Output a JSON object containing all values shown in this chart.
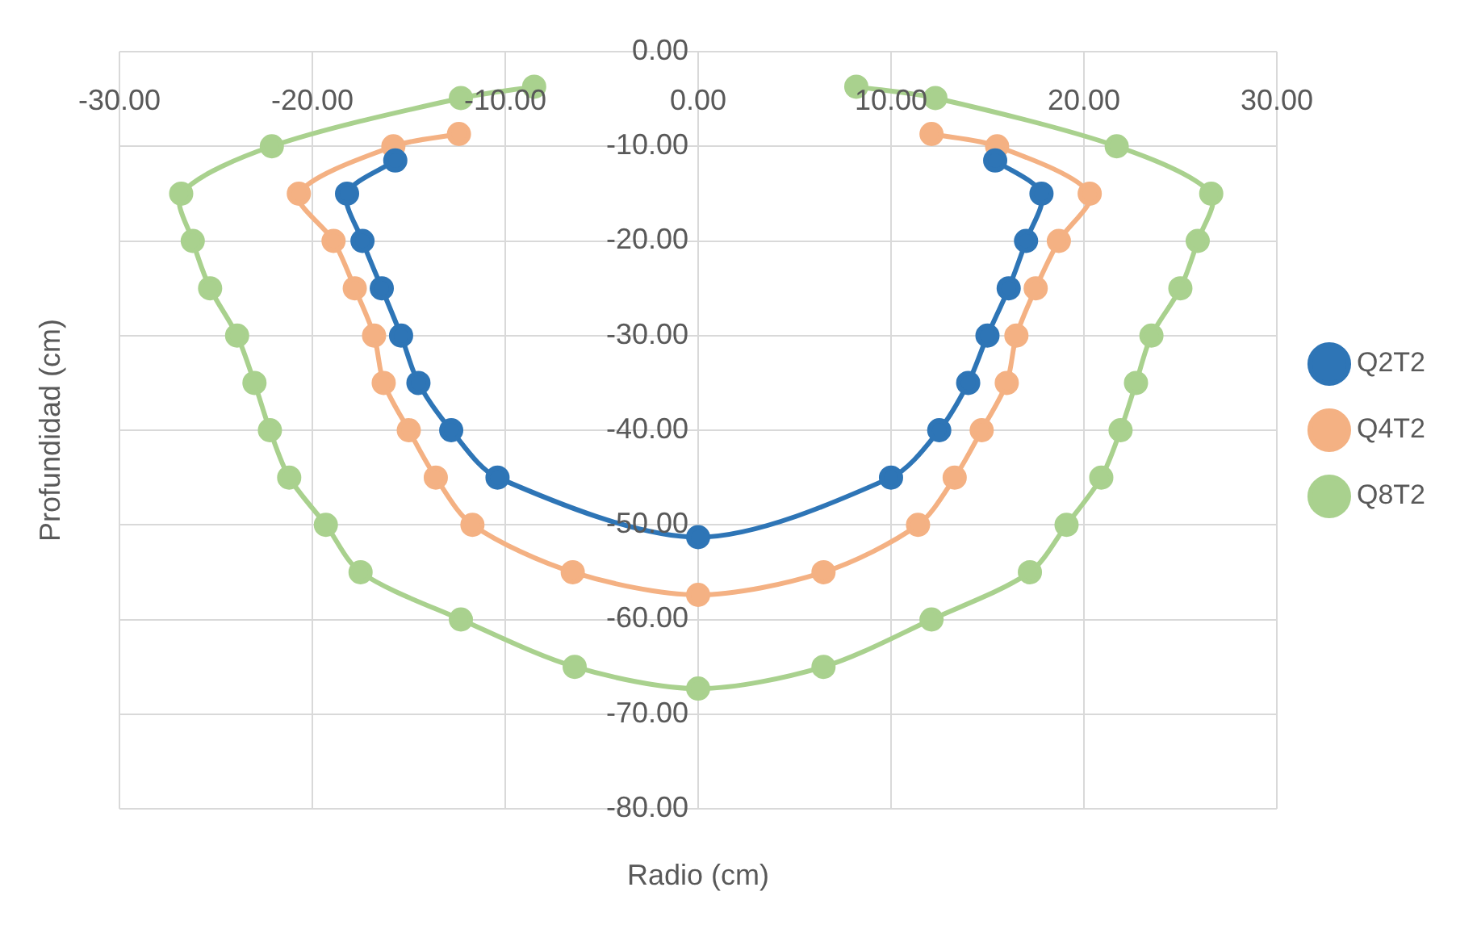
{
  "chart_data": {
    "type": "line",
    "xlabel": "Radio (cm)",
    "ylabel": "Profundidad (cm)",
    "xlim": [
      -30,
      30
    ],
    "ylim": [
      -80,
      0
    ],
    "xticks": [
      {
        "value": -30,
        "label": "-30.00"
      },
      {
        "value": -20,
        "label": "-20.00"
      },
      {
        "value": -10,
        "label": "-10.00"
      },
      {
        "value": 0,
        "label": "0.00"
      },
      {
        "value": 10,
        "label": "10.00"
      },
      {
        "value": 20,
        "label": "20.00"
      },
      {
        "value": 30,
        "label": "30.00"
      }
    ],
    "yticks": [
      {
        "value": 0,
        "label": "0.00"
      },
      {
        "value": -10,
        "label": "-10.00"
      },
      {
        "value": -20,
        "label": "-20.00"
      },
      {
        "value": -30,
        "label": "-30.00"
      },
      {
        "value": -40,
        "label": "-40.00"
      },
      {
        "value": -50,
        "label": "-50.00"
      },
      {
        "value": -60,
        "label": "-60.00"
      },
      {
        "value": -70,
        "label": "-70.00"
      },
      {
        "value": -80,
        "label": "-80.00"
      }
    ],
    "grid": true,
    "legend": "right",
    "marker": "circle",
    "line_style": "solid",
    "series": [
      {
        "name": "Q2T2",
        "color": "#2e75b6",
        "x": [
          -15.7,
          -18.2,
          -17.4,
          -16.4,
          -15.4,
          -14.5,
          -12.8,
          -10.4,
          0,
          10.0,
          12.5,
          14.0,
          15.0,
          16.1,
          17.0,
          17.8,
          15.4
        ],
        "values": [
          -11.5,
          -15,
          -20,
          -25,
          -30,
          -35,
          -40,
          -45,
          -51.3,
          -45,
          -40,
          -35,
          -30,
          -25,
          -20,
          -15,
          -11.5
        ]
      },
      {
        "name": "Q4T2",
        "color": "#f4b183",
        "x": [
          -12.4,
          -15.8,
          -20.7,
          -18.9,
          -17.8,
          -16.8,
          -16.3,
          -15.0,
          -13.6,
          -11.7,
          -6.5,
          0,
          6.5,
          11.4,
          13.3,
          14.7,
          16.0,
          16.5,
          17.5,
          18.7,
          20.3,
          15.5,
          12.1
        ],
        "values": [
          -8.7,
          -10,
          -15,
          -20,
          -25,
          -30,
          -35,
          -40,
          -45,
          -50,
          -55,
          -57.4,
          -55,
          -50,
          -45,
          -40,
          -35,
          -30,
          -25,
          -20,
          -15,
          -10,
          -8.7
        ]
      },
      {
        "name": "Q8T2",
        "color": "#a9d18e",
        "x": [
          -8.5,
          -12.3,
          -22.1,
          -26.8,
          -26.2,
          -25.3,
          -23.9,
          -23.0,
          -22.2,
          -21.2,
          -19.3,
          -17.5,
          -12.3,
          -6.4,
          0,
          6.5,
          12.1,
          17.2,
          19.1,
          20.9,
          21.9,
          22.7,
          23.5,
          25.0,
          25.9,
          26.6,
          21.7,
          12.3,
          8.2
        ],
        "values": [
          -3.7,
          -4.9,
          -10,
          -15,
          -20,
          -25,
          -30,
          -35,
          -40,
          -45,
          -50,
          -55,
          -60,
          -65,
          -67.3,
          -65,
          -60,
          -55,
          -50,
          -45,
          -40,
          -35,
          -30,
          -25,
          -20,
          -15,
          -10,
          -4.9,
          -3.7
        ]
      }
    ]
  }
}
